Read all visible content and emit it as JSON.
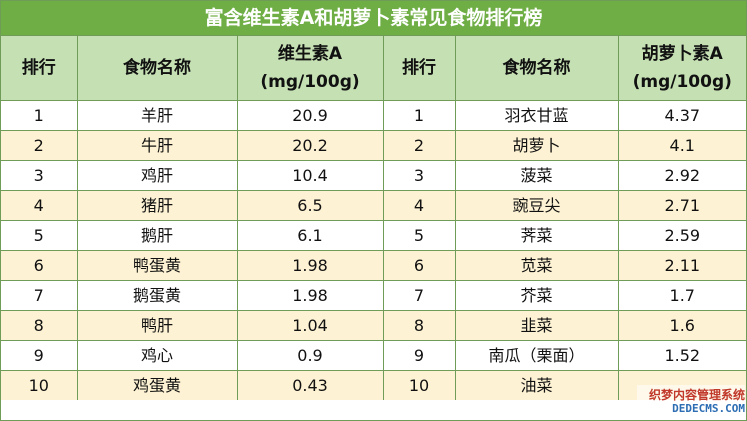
{
  "title": "富含维生素A和胡萝卜素常见食物排行榜",
  "headers": {
    "rank1": "排行",
    "food1": "食物名称",
    "value1_line1": "维生素A",
    "value1_line2": "(mg/100g)",
    "rank2": "排行",
    "food2": "食物名称",
    "value2_line1": "胡萝卜素A",
    "value2_line2": "(mg/100g)"
  },
  "rows": [
    {
      "rank1": "1",
      "food1": "羊肝",
      "value1": "20.9",
      "rank2": "1",
      "food2": "羽衣甘蓝",
      "value2": "4.37"
    },
    {
      "rank1": "2",
      "food1": "牛肝",
      "value1": "20.2",
      "rank2": "2",
      "food2": "胡萝卜",
      "value2": "4.1"
    },
    {
      "rank1": "3",
      "food1": "鸡肝",
      "value1": "10.4",
      "rank2": "3",
      "food2": "菠菜",
      "value2": "2.92"
    },
    {
      "rank1": "4",
      "food1": "猪肝",
      "value1": "6.5",
      "rank2": "4",
      "food2": "豌豆尖",
      "value2": "2.71"
    },
    {
      "rank1": "5",
      "food1": "鹅肝",
      "value1": "6.1",
      "rank2": "5",
      "food2": "荠菜",
      "value2": "2.59"
    },
    {
      "rank1": "6",
      "food1": "鸭蛋黄",
      "value1": "1.98",
      "rank2": "6",
      "food2": "苋菜",
      "value2": "2.11"
    },
    {
      "rank1": "7",
      "food1": "鹅蛋黄",
      "value1": "1.98",
      "rank2": "7",
      "food2": "芥菜",
      "value2": "1.7"
    },
    {
      "rank1": "8",
      "food1": "鸭肝",
      "value1": "1.04",
      "rank2": "8",
      "food2": "韭菜",
      "value2": "1.6"
    },
    {
      "rank1": "9",
      "food1": "鸡心",
      "value1": "0.9",
      "rank2": "9",
      "food2": "南瓜（栗面）",
      "value2": "1.52"
    },
    {
      "rank1": "10",
      "food1": "鸡蛋黄",
      "value1": "0.43",
      "rank2": "10",
      "food2": "油菜",
      "value2": ""
    }
  ],
  "watermark": {
    "line1": "织梦内容管理系统",
    "line2": "DEDECMS.COM"
  },
  "colors": {
    "title_bg": "#6fae45",
    "header_bg": "#c5e0b3",
    "row_alt_bg": "#fdf2d3",
    "border": "#6f9d57"
  }
}
